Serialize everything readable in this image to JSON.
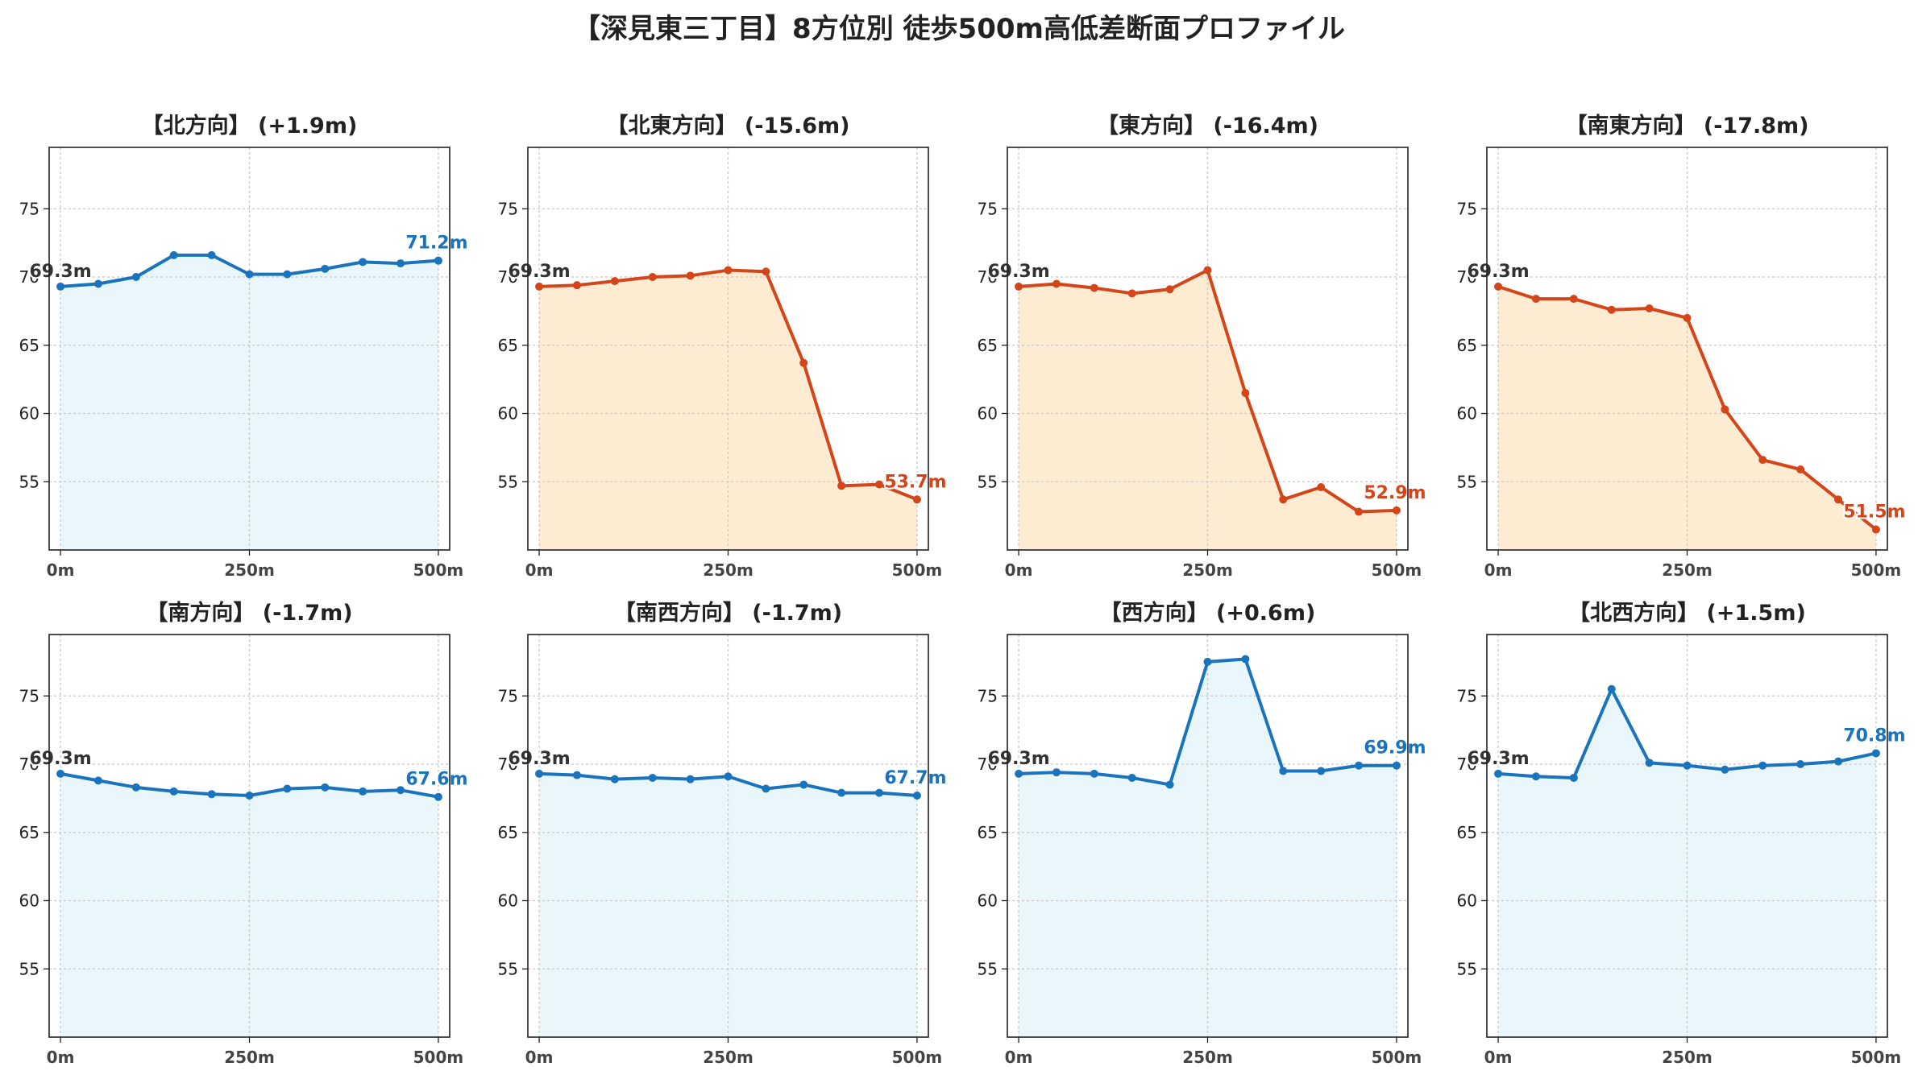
{
  "suptitle": "【深見東三丁目】8方位別 徒歩500m高低差断面プロファイル",
  "colors": {
    "up_line": "#1f77b4",
    "up_line_actual": "#1a73bd",
    "up_fill": "#e9f6fb",
    "down_line": "#d4461a",
    "down_fill": "#fdebd2",
    "start_label": "#333333"
  },
  "chart_data": [
    {
      "type": "area",
      "title": "【北方向】 (+1.9m)",
      "trend": "up",
      "x": [
        0,
        50,
        100,
        150,
        200,
        250,
        300,
        350,
        400,
        450,
        500
      ],
      "values": [
        69.3,
        69.5,
        70.0,
        71.6,
        71.6,
        70.2,
        70.2,
        70.6,
        71.1,
        71.0,
        71.2
      ],
      "start_label": "69.3m",
      "end_label": "71.2m",
      "xticks": [
        "0m",
        "250m",
        "500m"
      ],
      "yticks": [
        "55",
        "60",
        "65",
        "70",
        "75"
      ],
      "ylim": [
        50,
        79.5
      ],
      "xlim": [
        -15,
        515
      ],
      "grid": true
    },
    {
      "type": "area",
      "title": "【北東方向】 (-15.6m)",
      "trend": "down",
      "x": [
        0,
        50,
        100,
        150,
        200,
        250,
        300,
        350,
        400,
        450,
        500
      ],
      "values": [
        69.3,
        69.4,
        69.7,
        70.0,
        70.1,
        70.5,
        70.4,
        63.7,
        54.7,
        54.8,
        53.7
      ],
      "start_label": "69.3m",
      "end_label": "53.7m",
      "xticks": [
        "0m",
        "250m",
        "500m"
      ],
      "yticks": [
        "55",
        "60",
        "65",
        "70",
        "75"
      ],
      "ylim": [
        50,
        79.5
      ],
      "xlim": [
        -15,
        515
      ],
      "grid": true
    },
    {
      "type": "area",
      "title": "【東方向】 (-16.4m)",
      "trend": "down",
      "x": [
        0,
        50,
        100,
        150,
        200,
        250,
        300,
        350,
        400,
        450,
        500
      ],
      "values": [
        69.3,
        69.5,
        69.2,
        68.8,
        69.1,
        70.5,
        61.5,
        53.7,
        54.6,
        52.8,
        52.9
      ],
      "start_label": "69.3m",
      "end_label": "52.9m",
      "xticks": [
        "0m",
        "250m",
        "500m"
      ],
      "yticks": [
        "55",
        "60",
        "65",
        "70",
        "75"
      ],
      "ylim": [
        50,
        79.5
      ],
      "xlim": [
        -15,
        515
      ],
      "grid": true
    },
    {
      "type": "area",
      "title": "【南東方向】 (-17.8m)",
      "trend": "down",
      "x": [
        0,
        50,
        100,
        150,
        200,
        250,
        300,
        350,
        400,
        450,
        500
      ],
      "values": [
        69.3,
        68.4,
        68.4,
        67.6,
        67.7,
        67.0,
        60.3,
        56.6,
        55.9,
        53.7,
        51.5
      ],
      "start_label": "69.3m",
      "end_label": "51.5m",
      "xticks": [
        "0m",
        "250m",
        "500m"
      ],
      "yticks": [
        "55",
        "60",
        "65",
        "70",
        "75"
      ],
      "ylim": [
        50,
        79.5
      ],
      "xlim": [
        -15,
        515
      ],
      "grid": true
    },
    {
      "type": "area",
      "title": "【南方向】 (-1.7m)",
      "trend": "up",
      "x": [
        0,
        50,
        100,
        150,
        200,
        250,
        300,
        350,
        400,
        450,
        500
      ],
      "values": [
        69.3,
        68.8,
        68.3,
        68.0,
        67.8,
        67.7,
        68.2,
        68.3,
        68.0,
        68.1,
        67.6
      ],
      "start_label": "69.3m",
      "end_label": "67.6m",
      "xticks": [
        "0m",
        "250m",
        "500m"
      ],
      "yticks": [
        "55",
        "60",
        "65",
        "70",
        "75"
      ],
      "ylim": [
        50,
        79.5
      ],
      "xlim": [
        -15,
        515
      ],
      "grid": true
    },
    {
      "type": "area",
      "title": "【南西方向】 (-1.7m)",
      "trend": "up",
      "x": [
        0,
        50,
        100,
        150,
        200,
        250,
        300,
        350,
        400,
        450,
        500
      ],
      "values": [
        69.3,
        69.2,
        68.9,
        69.0,
        68.9,
        69.1,
        68.2,
        68.5,
        67.9,
        67.9,
        67.7
      ],
      "start_label": "69.3m",
      "end_label": "67.7m",
      "xticks": [
        "0m",
        "250m",
        "500m"
      ],
      "yticks": [
        "55",
        "60",
        "65",
        "70",
        "75"
      ],
      "ylim": [
        50,
        79.5
      ],
      "xlim": [
        -15,
        515
      ],
      "grid": true
    },
    {
      "type": "area",
      "title": "【西方向】 (+0.6m)",
      "trend": "up",
      "x": [
        0,
        50,
        100,
        150,
        200,
        250,
        300,
        350,
        400,
        450,
        500
      ],
      "values": [
        69.3,
        69.4,
        69.3,
        69.0,
        68.5,
        77.5,
        77.7,
        69.5,
        69.5,
        69.9,
        69.9
      ],
      "start_label": "69.3m",
      "end_label": "69.9m",
      "xticks": [
        "0m",
        "250m",
        "500m"
      ],
      "yticks": [
        "55",
        "60",
        "65",
        "70",
        "75"
      ],
      "ylim": [
        50,
        79.5
      ],
      "xlim": [
        -15,
        515
      ],
      "grid": true
    },
    {
      "type": "area",
      "title": "【北西方向】 (+1.5m)",
      "trend": "up",
      "x": [
        0,
        50,
        100,
        150,
        200,
        250,
        300,
        350,
        400,
        450,
        500
      ],
      "values": [
        69.3,
        69.1,
        69.0,
        75.5,
        70.1,
        69.9,
        69.6,
        69.9,
        70.0,
        70.2,
        70.8
      ],
      "start_label": "69.3m",
      "end_label": "70.8m",
      "xticks": [
        "0m",
        "250m",
        "500m"
      ],
      "yticks": [
        "55",
        "60",
        "65",
        "70",
        "75"
      ],
      "ylim": [
        50,
        79.5
      ],
      "xlim": [
        -15,
        515
      ],
      "grid": true
    }
  ]
}
